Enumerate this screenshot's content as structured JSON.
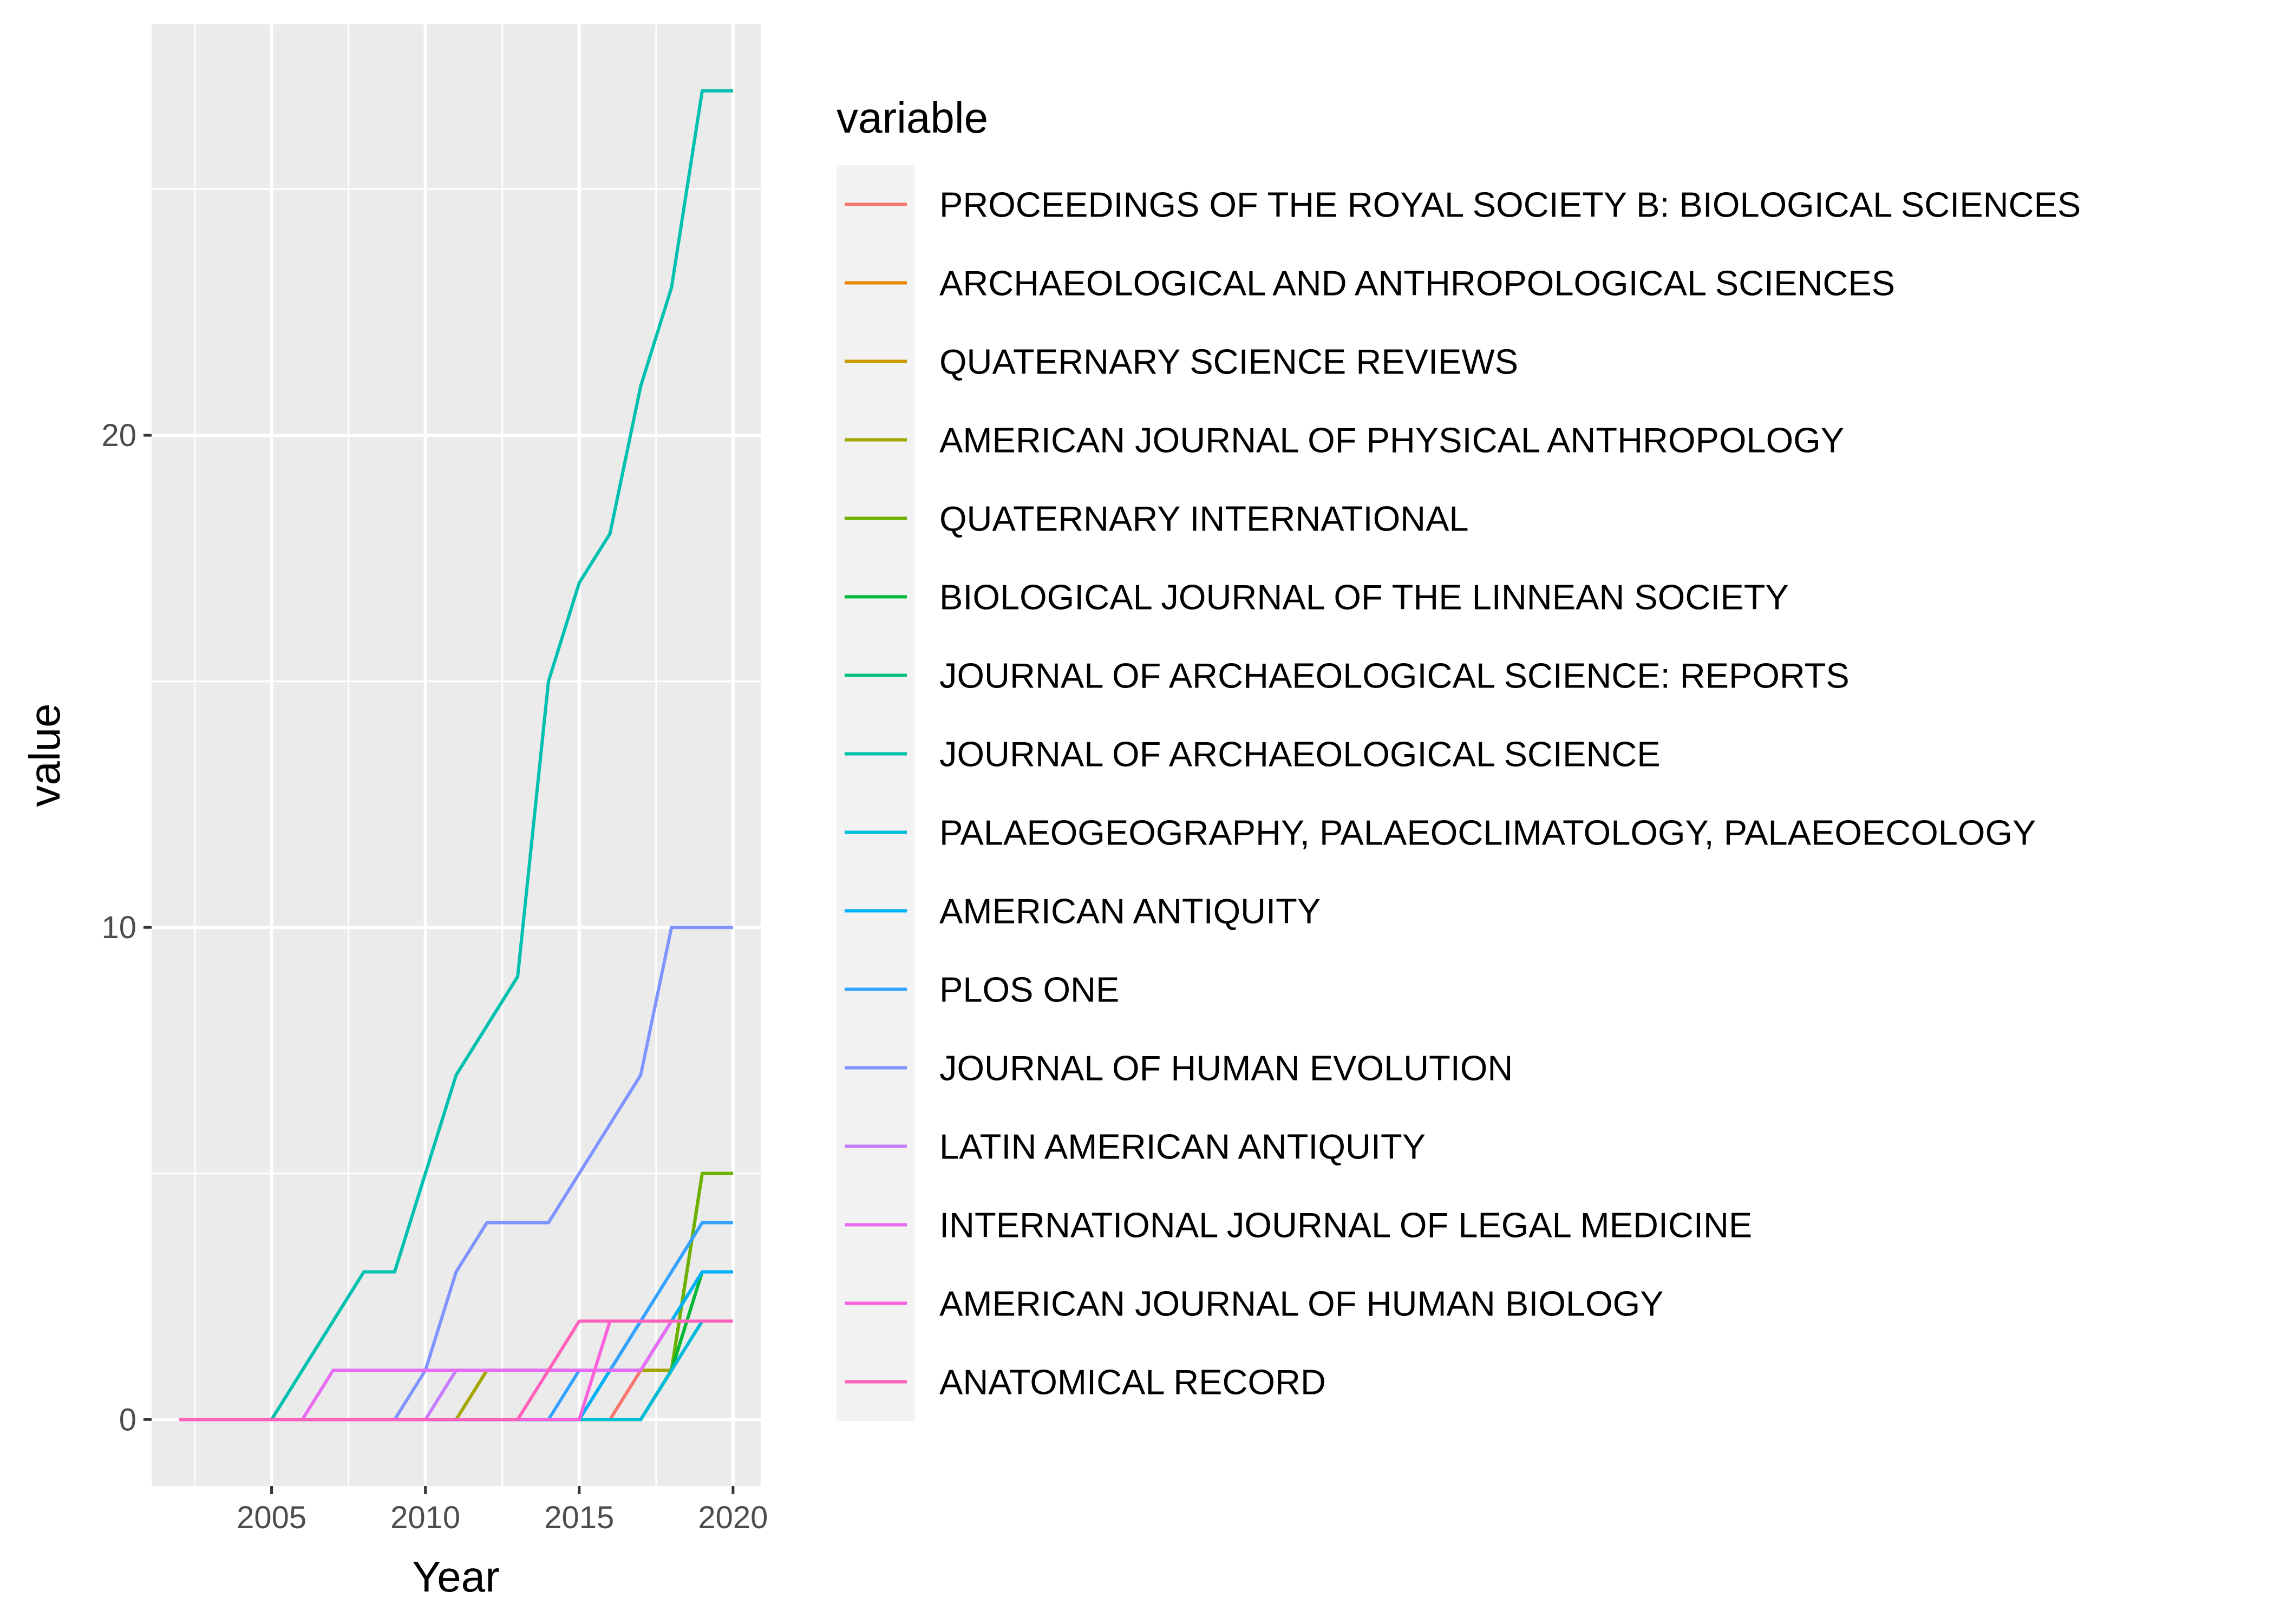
{
  "chart_data": {
    "type": "line",
    "xlabel": "Year",
    "ylabel": "value",
    "xlim": [
      2001.1,
      2020.9
    ],
    "ylim": [
      -1.35,
      28.35
    ],
    "x_ticks": [
      2005,
      2010,
      2015,
      2020
    ],
    "y_ticks": [
      0,
      10,
      20
    ],
    "x_tick_labels": [
      "2005",
      "2010",
      "2015",
      "2020"
    ],
    "y_tick_labels": [
      "0",
      "10",
      "20"
    ],
    "grid": true,
    "legend": {
      "title": "variable",
      "position": "right"
    },
    "x": [
      2002,
      2003,
      2004,
      2005,
      2006,
      2007,
      2008,
      2009,
      2010,
      2011,
      2012,
      2013,
      2014,
      2015,
      2016,
      2017,
      2018,
      2019,
      2020
    ],
    "series": [
      {
        "name": "PROCEEDINGS OF THE ROYAL SOCIETY B: BIOLOGICAL SCIENCES",
        "color": "#F8766D",
        "values": [
          0,
          0,
          0,
          0,
          0,
          0,
          0,
          0,
          0,
          0,
          0,
          0,
          0,
          0,
          0,
          1,
          1,
          2,
          2
        ]
      },
      {
        "name": "ARCHAEOLOGICAL AND ANTHROPOLOGICAL SCIENCES",
        "color": "#E58700",
        "values": [
          0,
          0,
          0,
          0,
          0,
          0,
          0,
          0,
          0,
          0,
          0,
          0,
          0,
          0,
          0,
          0,
          1,
          3,
          3
        ]
      },
      {
        "name": "QUATERNARY SCIENCE REVIEWS",
        "color": "#C99800",
        "values": [
          0,
          0,
          0,
          0,
          0,
          0,
          0,
          0,
          0,
          0,
          0,
          0,
          0,
          0,
          0,
          0,
          1,
          5,
          5
        ]
      },
      {
        "name": "AMERICAN JOURNAL OF PHYSICAL ANTHROPOLOGY",
        "color": "#A3A500",
        "values": [
          0,
          0,
          0,
          0,
          0,
          0,
          0,
          0,
          0,
          0,
          1,
          1,
          1,
          1,
          1,
          1,
          1,
          5,
          5
        ]
      },
      {
        "name": "QUATERNARY INTERNATIONAL",
        "color": "#6BB100",
        "values": [
          0,
          0,
          0,
          0,
          0,
          0,
          0,
          0,
          0,
          0,
          0,
          0,
          0,
          0,
          0,
          0,
          1,
          5,
          5
        ]
      },
      {
        "name": "BIOLOGICAL JOURNAL OF THE LINNEAN SOCIETY",
        "color": "#00BA38",
        "values": [
          0,
          0,
          0,
          0,
          0,
          0,
          0,
          0,
          0,
          0,
          0,
          0,
          0,
          0,
          0,
          0,
          1,
          3,
          3
        ]
      },
      {
        "name": "JOURNAL OF ARCHAEOLOGICAL SCIENCE: REPORTS",
        "color": "#00BF7D",
        "values": [
          0,
          0,
          0,
          0,
          0,
          0,
          0,
          0,
          0,
          0,
          0,
          0,
          0,
          0,
          1,
          2,
          2,
          3,
          3
        ]
      },
      {
        "name": "JOURNAL OF ARCHAEOLOGICAL SCIENCE",
        "color": "#00C0AF",
        "values": [
          0,
          0,
          0,
          0,
          1,
          2,
          3,
          3,
          5,
          7,
          8,
          9,
          15,
          17,
          18,
          21,
          23,
          27,
          27
        ]
      },
      {
        "name": "PALAEOGEOGRAPHY, PALAEOCLIMATOLOGY, PALAEOECOLOGY",
        "color": "#00BCD8",
        "values": [
          0,
          0,
          0,
          0,
          0,
          0,
          0,
          0,
          0,
          0,
          0,
          0,
          0,
          0,
          0,
          0,
          1,
          2,
          2
        ]
      },
      {
        "name": "AMERICAN ANTIQUITY",
        "color": "#00B0F6",
        "values": [
          0,
          0,
          0,
          0,
          0,
          0,
          0,
          0,
          0,
          0,
          0,
          0,
          0,
          0,
          1,
          1,
          2,
          3,
          3
        ]
      },
      {
        "name": "PLOS ONE",
        "color": "#35A2FF",
        "values": [
          0,
          0,
          0,
          0,
          0,
          0,
          0,
          0,
          0,
          0,
          0,
          0,
          0,
          1,
          1,
          2,
          3,
          4,
          4
        ]
      },
      {
        "name": "JOURNAL OF HUMAN EVOLUTION",
        "color": "#8094FF",
        "values": [
          0,
          0,
          0,
          0,
          0,
          0,
          0,
          0,
          1,
          3,
          4,
          4,
          4,
          5,
          6,
          7,
          10,
          10,
          10
        ]
      },
      {
        "name": "LATIN AMERICAN ANTIQUITY",
        "color": "#C77CFF",
        "values": [
          0,
          0,
          0,
          0,
          0,
          0,
          0,
          0,
          0,
          1,
          1,
          1,
          1,
          1,
          1,
          1,
          2,
          2,
          2
        ]
      },
      {
        "name": "INTERNATIONAL JOURNAL OF LEGAL MEDICINE",
        "color": "#E76BF3",
        "values": [
          0,
          0,
          0,
          0,
          0,
          1,
          1,
          1,
          1,
          1,
          1,
          1,
          1,
          1,
          1,
          1,
          2,
          2,
          2
        ]
      },
      {
        "name": "AMERICAN JOURNAL OF HUMAN BIOLOGY",
        "color": "#FA62DB",
        "values": [
          0,
          0,
          0,
          0,
          0,
          0,
          0,
          0,
          0,
          0,
          0,
          0,
          0,
          0,
          2,
          2,
          2,
          2,
          2
        ]
      },
      {
        "name": "ANATOMICAL RECORD",
        "color": "#FF62BC",
        "values": [
          0,
          0,
          0,
          0,
          0,
          0,
          0,
          0,
          0,
          0,
          0,
          0,
          1,
          2,
          2,
          2,
          2,
          2,
          2
        ]
      }
    ],
    "colors": {
      "panel_background": "#EBEBEB",
      "grid_major": "#FFFFFF",
      "grid_minor": "#F5F5F5",
      "legend_key_background": "#F2F2F2",
      "axis_text": "#4D4D4D",
      "tick": "#333333"
    }
  }
}
